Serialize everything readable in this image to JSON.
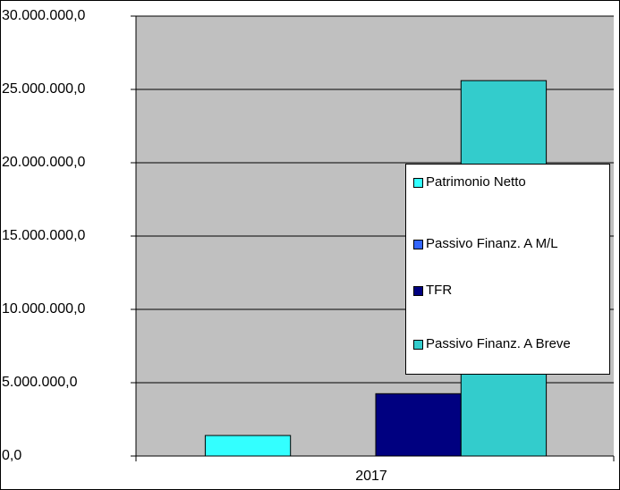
{
  "chart_data": {
    "type": "bar",
    "categories": [
      "2017"
    ],
    "series": [
      {
        "name": "Patrimonio Netto",
        "color": "#33ffff",
        "values": [
          1400000
        ]
      },
      {
        "name": "Passivo Finanz. A M/L",
        "color": "#3366ff",
        "values": [
          0
        ]
      },
      {
        "name": "TFR",
        "color": "#000080",
        "values": [
          4250000
        ]
      },
      {
        "name": "Passivo Finanz. A Breve",
        "color": "#33cccc",
        "values": [
          25600000
        ]
      }
    ],
    "ylim": [
      0,
      30000000
    ],
    "yticks": [
      {
        "value": 0,
        "label": "0,0"
      },
      {
        "value": 5000000,
        "label": "5.000.000,0"
      },
      {
        "value": 10000000,
        "label": "10.000.000,0"
      },
      {
        "value": 15000000,
        "label": "15.000.000,0"
      },
      {
        "value": 20000000,
        "label": "20.000.000,0"
      },
      {
        "value": 25000000,
        "label": "25.000.000,0"
      },
      {
        "value": 30000000,
        "label": "30.000.000,0"
      }
    ],
    "grid": true,
    "legend": "right"
  }
}
